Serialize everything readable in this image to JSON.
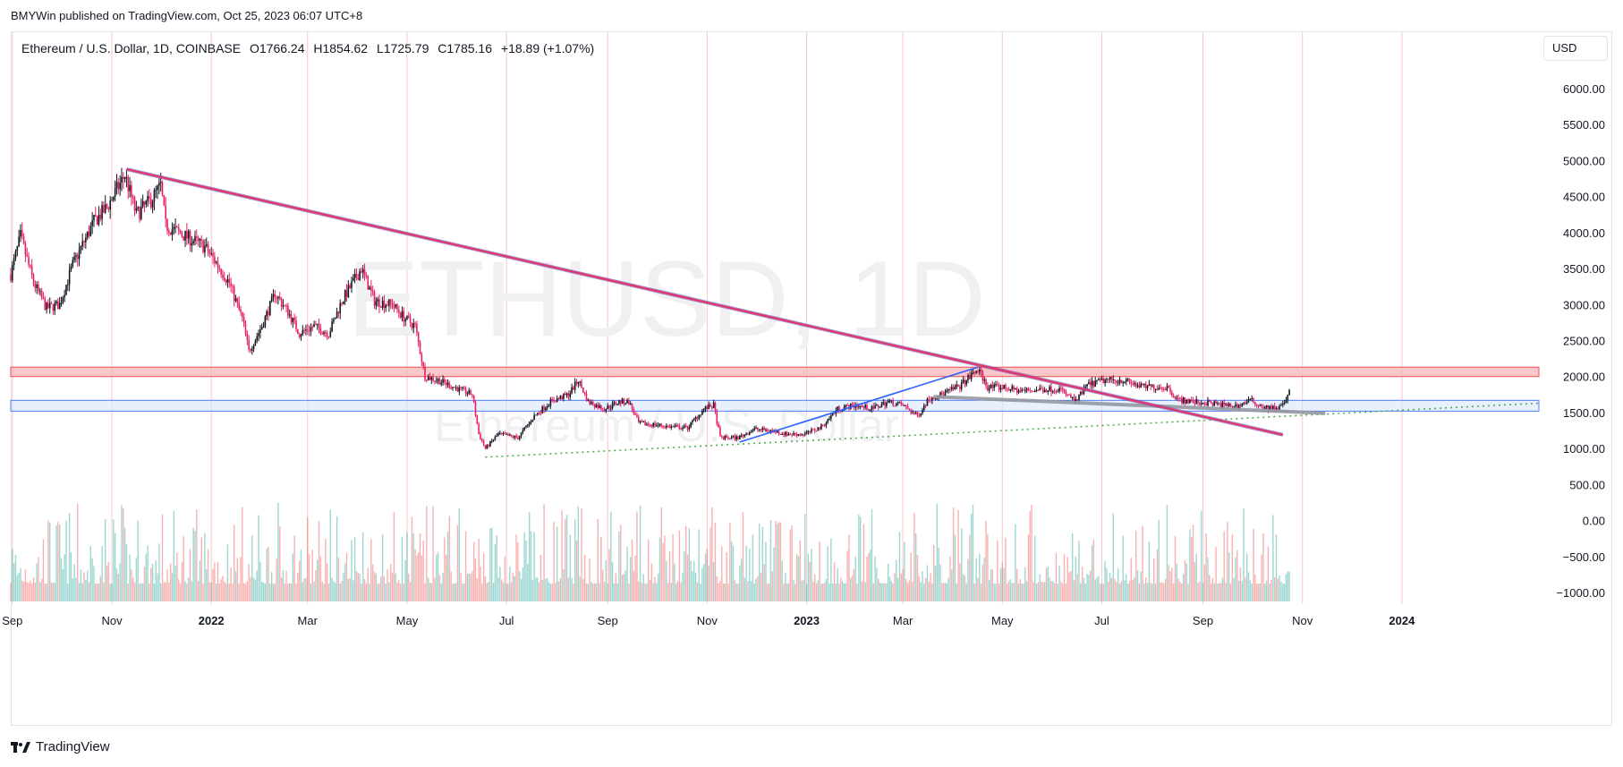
{
  "header": {
    "publish_line": "BMYWin published on TradingView.com, Oct 25, 2023 06:07 UTC+8",
    "currency": "USD"
  },
  "legend": {
    "symbol": "Ethereum / U.S. Dollar, 1D, COINBASE",
    "open": "O1766.24",
    "high": "H1854.62",
    "low": "L1725.79",
    "close": "C1785.16",
    "change": "+18.89 (+1.07%)"
  },
  "watermark": {
    "line1": "ETHUSD, 1D",
    "line2": "Ethereum / U.S. Dollar"
  },
  "footer": {
    "brand": "TradingView",
    "logo": "tradingview-logo-icon"
  },
  "colors": {
    "up": "#131722",
    "down": "#e91e63",
    "trend": "#e53560",
    "blueTrend": "#2962ff",
    "support": "#9598a1",
    "dotted": "#4caf50",
    "resistanceZone": "#f7b4b8",
    "supportZone": "#d7e6f8",
    "grid": "#f8c8c8"
  },
  "chart_data": {
    "type": "candlestick",
    "price_axis": {
      "ticks": [
        "6000.00",
        "5500.00",
        "5000.00",
        "4500.00",
        "4000.00",
        "3500.00",
        "3000.00",
        "2500.00",
        "2000.00",
        "1500.00",
        "1000.00",
        "500.00",
        "0.00",
        "−500.00",
        "−1000.00"
      ],
      "range": [
        -1000,
        6000
      ]
    },
    "time_axis": {
      "ticks": [
        "Sep",
        "Nov",
        "2022",
        "Mar",
        "May",
        "Jul",
        "Sep",
        "Nov",
        "2023",
        "Mar",
        "May",
        "Jul",
        "Sep",
        "Nov",
        "2024"
      ],
      "bold": [
        "2022",
        "2023",
        "2024"
      ],
      "range": [
        "2021-08-31",
        "2024-03-25"
      ]
    },
    "price_path": [
      [
        "2021-08-31",
        3420
      ],
      [
        "2021-09-06",
        3950
      ],
      [
        "2021-09-14",
        3300
      ],
      [
        "2021-09-22",
        2950
      ],
      [
        "2021-09-30",
        3000
      ],
      [
        "2021-10-08",
        3550
      ],
      [
        "2021-10-21",
        4150
      ],
      [
        "2021-10-29",
        4350
      ],
      [
        "2021-11-09",
        4800
      ],
      [
        "2021-11-16",
        4250
      ],
      [
        "2021-11-25",
        4450
      ],
      [
        "2021-12-01",
        4650
      ],
      [
        "2021-12-04",
        4100
      ],
      [
        "2021-12-12",
        4000
      ],
      [
        "2021-12-20",
        3900
      ],
      [
        "2021-12-28",
        3800
      ],
      [
        "2022-01-05",
        3550
      ],
      [
        "2022-01-12",
        3300
      ],
      [
        "2022-01-20",
        2800
      ],
      [
        "2022-01-24",
        2350
      ],
      [
        "2022-02-01",
        2700
      ],
      [
        "2022-02-09",
        3150
      ],
      [
        "2022-02-17",
        2900
      ],
      [
        "2022-02-24",
        2600
      ],
      [
        "2022-03-05",
        2700
      ],
      [
        "2022-03-14",
        2600
      ],
      [
        "2022-03-22",
        3050
      ],
      [
        "2022-04-03",
        3500
      ],
      [
        "2022-04-11",
        3050
      ],
      [
        "2022-04-22",
        3000
      ],
      [
        "2022-04-30",
        2800
      ],
      [
        "2022-05-06",
        2700
      ],
      [
        "2022-05-12",
        2000
      ],
      [
        "2022-05-20",
        1950
      ],
      [
        "2022-05-30",
        1850
      ],
      [
        "2022-06-10",
        1750
      ],
      [
        "2022-06-14",
        1200
      ],
      [
        "2022-06-18",
        1000
      ],
      [
        "2022-06-26",
        1200
      ],
      [
        "2022-07-08",
        1150
      ],
      [
        "2022-07-18",
        1450
      ],
      [
        "2022-07-28",
        1650
      ],
      [
        "2022-08-08",
        1750
      ],
      [
        "2022-08-14",
        1950
      ],
      [
        "2022-08-20",
        1650
      ],
      [
        "2022-08-30",
        1550
      ],
      [
        "2022-09-08",
        1650
      ],
      [
        "2022-09-14",
        1650
      ],
      [
        "2022-09-20",
        1350
      ],
      [
        "2022-09-30",
        1330
      ],
      [
        "2022-10-10",
        1300
      ],
      [
        "2022-10-20",
        1290
      ],
      [
        "2022-10-30",
        1550
      ],
      [
        "2022-11-05",
        1600
      ],
      [
        "2022-11-09",
        1150
      ],
      [
        "2022-11-20",
        1150
      ],
      [
        "2022-11-30",
        1270
      ],
      [
        "2022-12-10",
        1250
      ],
      [
        "2022-12-20",
        1200
      ],
      [
        "2022-12-31",
        1200
      ],
      [
        "2023-01-10",
        1300
      ],
      [
        "2023-01-20",
        1550
      ],
      [
        "2023-01-31",
        1600
      ],
      [
        "2023-02-10",
        1550
      ],
      [
        "2023-02-20",
        1650
      ],
      [
        "2023-03-01",
        1600
      ],
      [
        "2023-03-10",
        1450
      ],
      [
        "2023-03-17",
        1700
      ],
      [
        "2023-03-25",
        1750
      ],
      [
        "2023-04-05",
        1870
      ],
      [
        "2023-04-16",
        2100
      ],
      [
        "2023-04-22",
        1850
      ],
      [
        "2023-05-01",
        1850
      ],
      [
        "2023-05-12",
        1800
      ],
      [
        "2023-05-25",
        1820
      ],
      [
        "2023-06-05",
        1830
      ],
      [
        "2023-06-15",
        1650
      ],
      [
        "2023-06-22",
        1880
      ],
      [
        "2023-07-03",
        1950
      ],
      [
        "2023-07-14",
        1950
      ],
      [
        "2023-07-25",
        1860
      ],
      [
        "2023-08-10",
        1850
      ],
      [
        "2023-08-17",
        1680
      ],
      [
        "2023-08-25",
        1650
      ],
      [
        "2023-09-05",
        1630
      ],
      [
        "2023-09-15",
        1600
      ],
      [
        "2023-09-22",
        1590
      ],
      [
        "2023-09-30",
        1670
      ],
      [
        "2023-10-08",
        1580
      ],
      [
        "2023-10-12",
        1560
      ],
      [
        "2023-10-18",
        1570
      ],
      [
        "2023-10-22",
        1660
      ],
      [
        "2023-10-24",
        1785
      ]
    ],
    "drawings": {
      "resistance_zone": [
        2000,
        2130
      ],
      "support_zone": [
        1520,
        1670
      ],
      "main_downtrend": [
        [
          "2021-11-10",
          4880
        ],
        [
          "2023-10-20",
          1190
        ]
      ],
      "blue_uptrend": [
        [
          "2022-11-21",
          1090
        ],
        [
          "2023-04-16",
          2130
        ]
      ],
      "gray_support": [
        [
          "2023-03-20",
          1720
        ],
        [
          "2023-11-15",
          1490
        ]
      ],
      "green_dotted_uptrend": [
        [
          "2022-06-18",
          880
        ],
        [
          "2024-03-25",
          1630
        ]
      ]
    },
    "volume": {
      "scale_note": "overlay histogram at bottom of price pane"
    }
  }
}
